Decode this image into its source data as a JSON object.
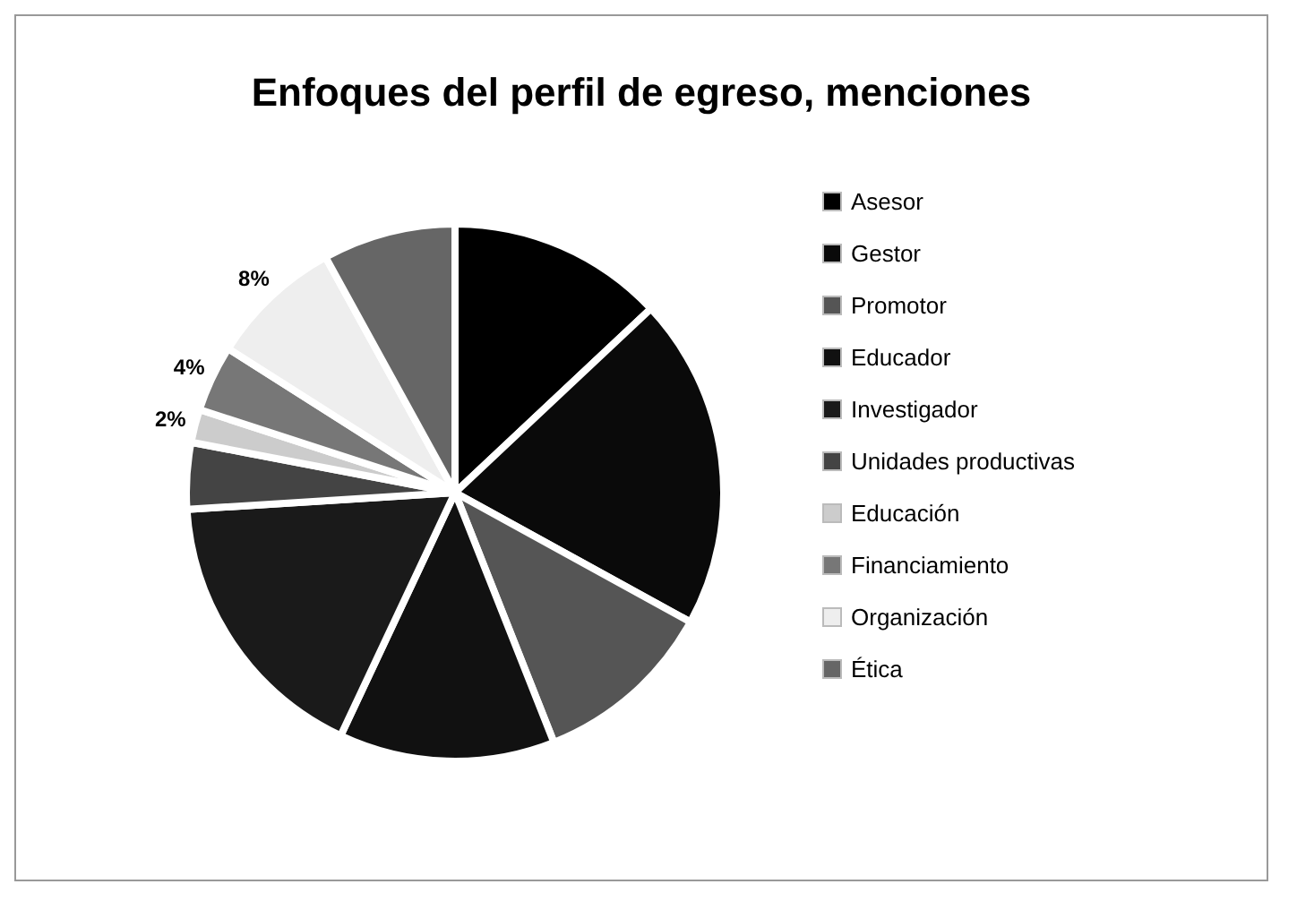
{
  "chart_data": {
    "type": "pie",
    "title": "Enfoques del perfil de egreso, menciones",
    "categories": [
      "Asesor",
      "Gestor",
      "Promotor",
      "Educador",
      "Investigador",
      "Unidades productivas",
      "Educación",
      "Financiamiento",
      "Organización",
      "Ética"
    ],
    "values": [
      13,
      20,
      11,
      13,
      17,
      4,
      2,
      4,
      8,
      8
    ],
    "colors": [
      "#000000",
      "#0a0a0a",
      "#555555",
      "#111111",
      "#1a1a1a",
      "#444444",
      "#cccccc",
      "#777777",
      "#eeeeee",
      "#666666"
    ],
    "value_labels": [
      null,
      null,
      null,
      null,
      null,
      null,
      "2%",
      "4%",
      "8%",
      null
    ],
    "legend": "right"
  }
}
